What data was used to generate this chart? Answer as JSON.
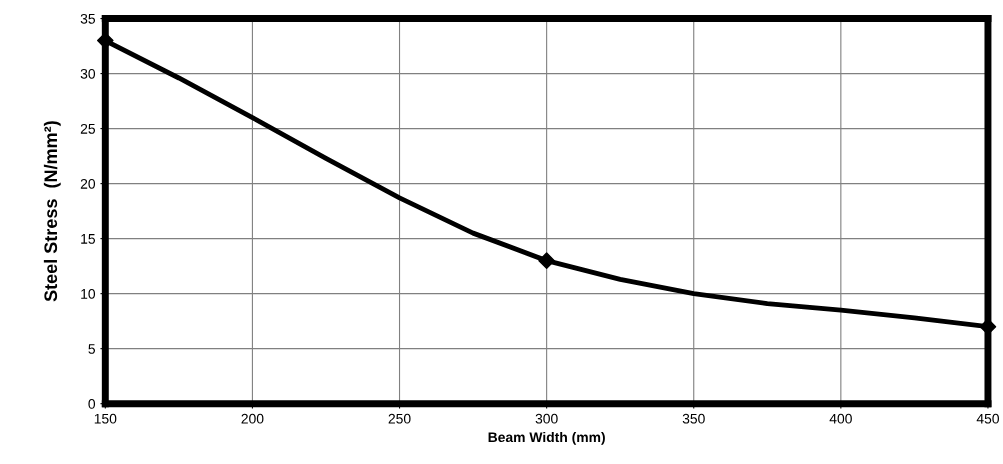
{
  "chart_data": {
    "type": "line",
    "xlabel": "Beam Width (mm)",
    "ylabel": "Steel Stress  (N/mm²)",
    "x": [
      150,
      175,
      200,
      225,
      250,
      275,
      300,
      325,
      350,
      375,
      400,
      425,
      450
    ],
    "series": [
      {
        "color": "#000000",
        "values": [
          33,
          29.6,
          26,
          22.3,
          18.7,
          15.5,
          13,
          11.3,
          10,
          9.1,
          8.5,
          7.8,
          7
        ],
        "marker": "none"
      },
      {
        "type": "scatter",
        "color": "#000000",
        "x": [
          150,
          300,
          450
        ],
        "values": [
          33,
          13,
          7
        ],
        "marker": "diamond"
      }
    ],
    "xlim": [
      150,
      450
    ],
    "xticks": [
      150,
      200,
      250,
      300,
      350,
      400,
      450
    ],
    "ylim": [
      0,
      35
    ],
    "yticks": [
      0,
      5,
      10,
      15,
      20,
      25,
      30,
      35
    ],
    "grid": true,
    "line_style": "solid"
  }
}
